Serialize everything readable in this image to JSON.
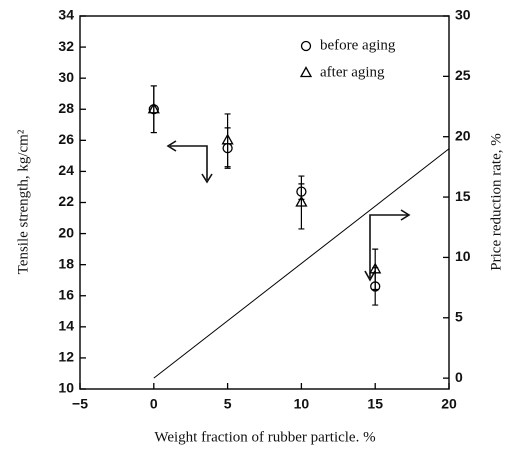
{
  "chart_data": {
    "type": "scatter",
    "xlabel": "Weight fraction of rubber particle. %",
    "ylabel": "Tensile strength, kg/cm²",
    "y2label": "Price reduction rate, %",
    "xlim": [
      -5,
      20
    ],
    "xticks": [
      {
        "value": -5,
        "label": "−5"
      },
      0,
      5,
      10,
      15,
      20
    ],
    "ylim": [
      10,
      34
    ],
    "yticks": [
      10,
      12,
      14,
      16,
      18,
      20,
      22,
      24,
      26,
      28,
      30,
      32,
      34
    ],
    "y2lim": [
      -0.9,
      30
    ],
    "y2ticks": [
      0,
      5,
      10,
      15,
      20,
      25,
      30
    ],
    "color": "#000000",
    "series": [
      {
        "name": "before aging",
        "marker": "circle",
        "x": [
          0,
          5,
          10,
          15
        ],
        "values": [
          28,
          25.5,
          22.7,
          16.6
        ],
        "errors": [
          1.5,
          1.3,
          0.5,
          1.2
        ]
      },
      {
        "name": "after aging",
        "marker": "triangle",
        "x": [
          0,
          5,
          10,
          15
        ],
        "values": [
          28,
          26,
          22,
          17.7
        ],
        "errors": [
          1.5,
          1.7,
          1.7,
          1.3
        ]
      },
      {
        "marker": "line",
        "axis": "y2",
        "x": [
          0,
          20
        ],
        "values": [
          0,
          19
        ]
      }
    ]
  }
}
